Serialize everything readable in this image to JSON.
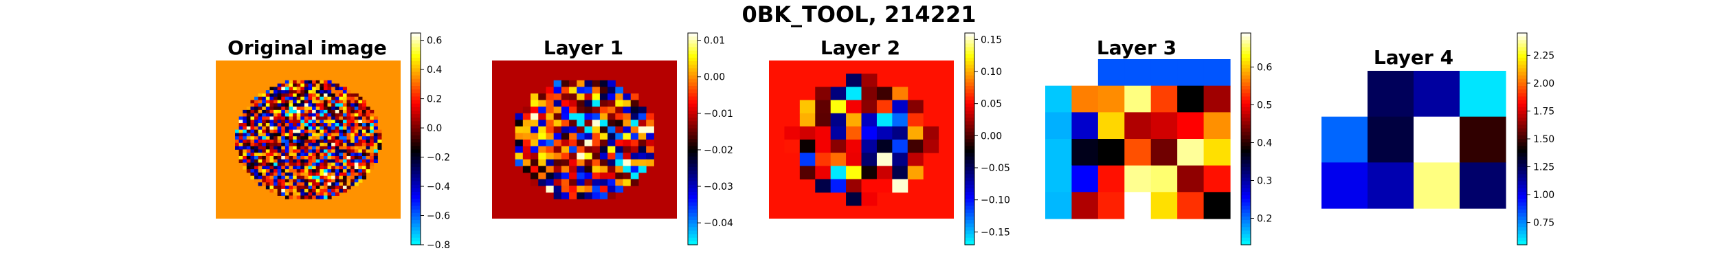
{
  "title": "0BK_TOOL, 214221",
  "colormap": [
    "#00ffff",
    "#0080ff",
    "#0000ff",
    "#00007f",
    "#000000",
    "#7f0000",
    "#ff0000",
    "#ff8000",
    "#ffff00",
    "#ffffff"
  ],
  "chart_data": [
    {
      "type": "heatmap",
      "title": "Original image",
      "grid_size": 48,
      "clim": [
        -0.8,
        0.65
      ],
      "colorbar_ticks": [
        {
          "v": 0.6,
          "label": "0.6"
        },
        {
          "v": 0.4,
          "label": "0.4"
        },
        {
          "v": 0.2,
          "label": "0.2"
        },
        {
          "v": 0.0,
          "label": "0.0"
        },
        {
          "v": -0.2,
          "label": "−0.2"
        },
        {
          "v": -0.4,
          "label": "−0.4"
        },
        {
          "v": -0.6,
          "label": "−0.6"
        },
        {
          "v": -0.8,
          "label": "−0.8"
        }
      ],
      "pattern": "circle-random",
      "fill_value": 0.35
    },
    {
      "type": "heatmap",
      "title": "Layer 1",
      "grid_size": 24,
      "clim": [
        -0.046,
        0.012
      ],
      "colorbar_ticks": [
        {
          "v": 0.01,
          "label": "0.01"
        },
        {
          "v": 0.0,
          "label": "0.00"
        },
        {
          "v": -0.01,
          "label": "−0.01"
        },
        {
          "v": -0.02,
          "label": "−0.02"
        },
        {
          "v": -0.03,
          "label": "−0.03"
        },
        {
          "v": -0.04,
          "label": "−0.04"
        }
      ],
      "pattern": "circle-random",
      "fill_value": -0.011
    },
    {
      "type": "heatmap",
      "title": "Layer 2",
      "grid_size": 12,
      "clim": [
        -0.17,
        0.16
      ],
      "colorbar_ticks": [
        {
          "v": 0.15,
          "label": "0.15"
        },
        {
          "v": 0.1,
          "label": "0.10"
        },
        {
          "v": 0.05,
          "label": "0.05"
        },
        {
          "v": 0.0,
          "label": "0.00"
        },
        {
          "v": -0.05,
          "label": "−0.05"
        },
        {
          "v": -0.1,
          "label": "−0.10"
        },
        {
          "v": -0.15,
          "label": "−0.15"
        }
      ],
      "pattern": "circle-random",
      "fill_value": 0.055
    },
    {
      "type": "heatmap",
      "title": "Layer 3",
      "grid_size": 6,
      "clim": [
        0.13,
        0.69
      ],
      "colorbar_ticks": [
        {
          "v": 0.6,
          "label": "0.6"
        },
        {
          "v": 0.5,
          "label": "0.5"
        },
        {
          "v": 0.4,
          "label": "0.4"
        },
        {
          "v": 0.3,
          "label": "0.3"
        },
        {
          "v": 0.2,
          "label": "0.2"
        }
      ],
      "cells": [
        [
          null,
          "#0055ff",
          "#0055ff",
          "#0055ff",
          "#0055ff",
          "#0055ff"
        ],
        [
          "#00c8ff",
          "#ff7f00",
          "#ff8c00",
          "#ffff80",
          "#ff4000",
          "#000000",
          "#a00000"
        ],
        [
          "#00b0ff",
          "#0000cc",
          "#ffd700",
          "#b00000",
          "#d00000",
          "#ff0000",
          "#ff9000"
        ],
        [
          "#00c0ff",
          "#00001a",
          "#000000",
          "#ff5000",
          "#700000",
          "#ffff99",
          "#ffe000"
        ],
        [
          "#00c0ff",
          "#0000ff",
          "#ff1000",
          "#ffff90",
          "#ffff70",
          "#900000",
          "#ff1000"
        ],
        [
          "#00b8ff",
          "#b00000",
          "#ff2000",
          "#ffffff",
          "#ffe000",
          "#ff3000",
          "#000000"
        ]
      ]
    },
    {
      "type": "heatmap",
      "title": "Layer 4",
      "grid_size": 3,
      "clim": [
        0.55,
        2.45
      ],
      "colorbar_ticks": [
        {
          "v": 2.25,
          "label": "2.25"
        },
        {
          "v": 2.0,
          "label": "2.00"
        },
        {
          "v": 1.75,
          "label": "1.75"
        },
        {
          "v": 1.5,
          "label": "1.50"
        },
        {
          "v": 1.25,
          "label": "1.25"
        },
        {
          "v": 1.0,
          "label": "1.00"
        },
        {
          "v": 0.75,
          "label": "0.75"
        }
      ],
      "cells": [
        [
          null,
          "#00005a",
          "#0000a0",
          "#00e5ff"
        ],
        [
          "#0066ff",
          "#000040",
          "#ffffff",
          "#300000"
        ],
        [
          "#0000ee",
          "#0000b0",
          "#ffff80",
          "#00006a"
        ]
      ]
    }
  ]
}
